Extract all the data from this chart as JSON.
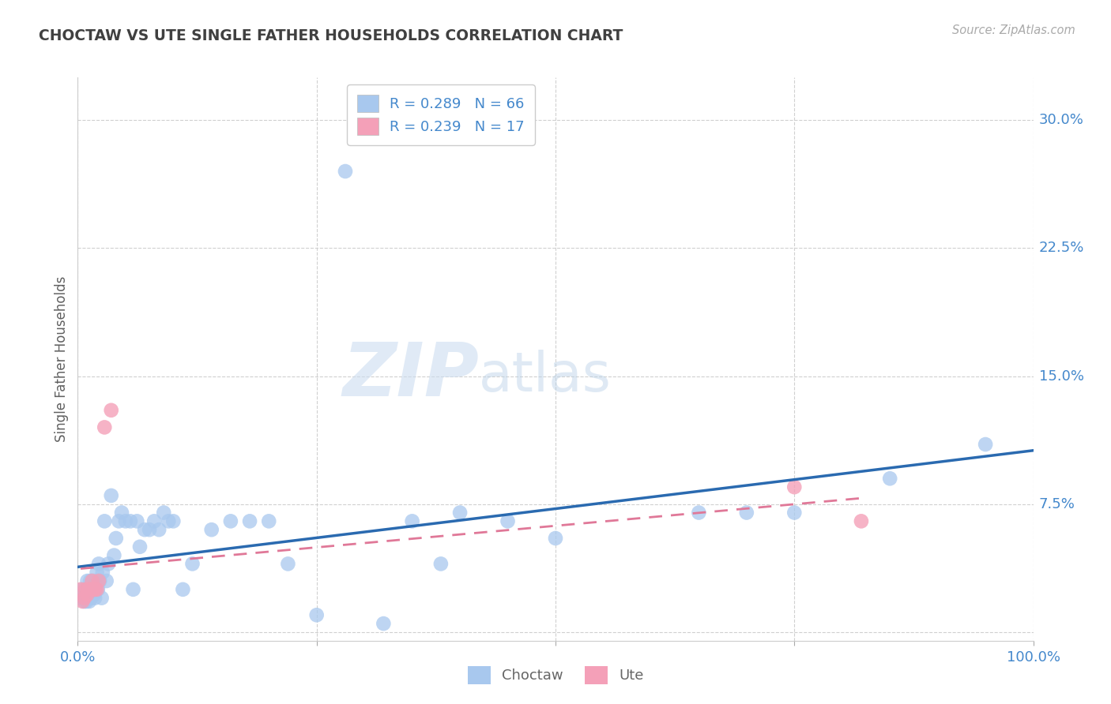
{
  "title": "CHOCTAW VS UTE SINGLE FATHER HOUSEHOLDS CORRELATION CHART",
  "source_text": "Source: ZipAtlas.com",
  "ylabel": "Single Father Households",
  "xlim": [
    0.0,
    1.0
  ],
  "ylim": [
    -0.005,
    0.325
  ],
  "yticks": [
    0.0,
    0.075,
    0.15,
    0.225,
    0.3
  ],
  "ytick_labels": [
    "",
    "7.5%",
    "15.0%",
    "22.5%",
    "30.0%"
  ],
  "xticks": [
    0.0,
    0.25,
    0.5,
    0.75,
    1.0
  ],
  "xtick_labels": [
    "0.0%",
    "",
    "",
    "",
    "100.0%"
  ],
  "choctaw_color": "#a8c8ee",
  "ute_color": "#f4a0b8",
  "choctaw_line_color": "#2a6ab0",
  "ute_line_color": "#e07898",
  "choctaw_R": 0.289,
  "choctaw_N": 66,
  "ute_R": 0.239,
  "ute_N": 17,
  "background_color": "#ffffff",
  "grid_color": "#d0d0d0",
  "title_color": "#404040",
  "axis_label_color": "#606060",
  "tick_label_color": "#4488cc",
  "legend_text_color": "#4488cc",
  "choctaw_x": [
    0.003,
    0.005,
    0.006,
    0.007,
    0.008,
    0.009,
    0.01,
    0.01,
    0.011,
    0.012,
    0.013,
    0.013,
    0.014,
    0.015,
    0.015,
    0.016,
    0.017,
    0.018,
    0.018,
    0.019,
    0.02,
    0.021,
    0.022,
    0.023,
    0.025,
    0.026,
    0.028,
    0.03,
    0.032,
    0.035,
    0.038,
    0.04,
    0.043,
    0.046,
    0.05,
    0.055,
    0.058,
    0.062,
    0.065,
    0.07,
    0.075,
    0.08,
    0.085,
    0.09,
    0.095,
    0.1,
    0.11,
    0.12,
    0.14,
    0.16,
    0.18,
    0.2,
    0.22,
    0.25,
    0.28,
    0.32,
    0.35,
    0.38,
    0.4,
    0.45,
    0.5,
    0.65,
    0.7,
    0.75,
    0.85,
    0.95
  ],
  "choctaw_y": [
    0.02,
    0.025,
    0.02,
    0.018,
    0.022,
    0.018,
    0.025,
    0.03,
    0.022,
    0.018,
    0.025,
    0.03,
    0.02,
    0.025,
    0.03,
    0.025,
    0.022,
    0.02,
    0.03,
    0.025,
    0.035,
    0.025,
    0.04,
    0.03,
    0.02,
    0.035,
    0.065,
    0.03,
    0.04,
    0.08,
    0.045,
    0.055,
    0.065,
    0.07,
    0.065,
    0.065,
    0.025,
    0.065,
    0.05,
    0.06,
    0.06,
    0.065,
    0.06,
    0.07,
    0.065,
    0.065,
    0.025,
    0.04,
    0.06,
    0.065,
    0.065,
    0.065,
    0.04,
    0.01,
    0.27,
    0.005,
    0.065,
    0.04,
    0.07,
    0.065,
    0.055,
    0.07,
    0.07,
    0.07,
    0.09,
    0.11
  ],
  "ute_x": [
    0.003,
    0.005,
    0.007,
    0.008,
    0.01,
    0.011,
    0.012,
    0.014,
    0.015,
    0.016,
    0.018,
    0.02,
    0.022,
    0.028,
    0.035,
    0.75,
    0.82
  ],
  "ute_y": [
    0.025,
    0.018,
    0.02,
    0.025,
    0.022,
    0.025,
    0.025,
    0.025,
    0.03,
    0.025,
    0.025,
    0.025,
    0.03,
    0.12,
    0.13,
    0.085,
    0.065
  ]
}
